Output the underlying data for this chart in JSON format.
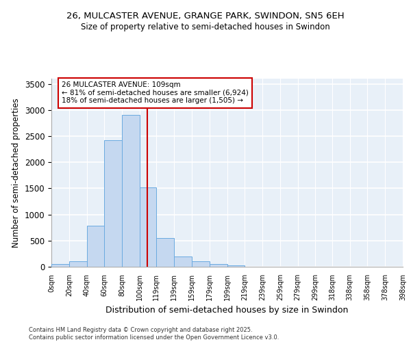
{
  "title_line1": "26, MULCASTER AVENUE, GRANGE PARK, SWINDON, SN5 6EH",
  "title_line2": "Size of property relative to semi-detached houses in Swindon",
  "xlabel": "Distribution of semi-detached houses by size in Swindon",
  "ylabel": "Number of semi-detached properties",
  "footer": "Contains HM Land Registry data © Crown copyright and database right 2025.\nContains public sector information licensed under the Open Government Licence v3.0.",
  "bar_edges": [
    0,
    20,
    40,
    60,
    80,
    100,
    119,
    139,
    159,
    179,
    199,
    219,
    239,
    259,
    279,
    299,
    318,
    338,
    358,
    378,
    398
  ],
  "bar_heights": [
    55,
    100,
    790,
    2420,
    2900,
    1520,
    550,
    200,
    100,
    50,
    30,
    5,
    3,
    2,
    1,
    1,
    0,
    0,
    0,
    0
  ],
  "bar_color": "#c5d8f0",
  "bar_edgecolor": "#6aaae0",
  "bg_color": "#e8f0f8",
  "grid_color": "#ffffff",
  "property_size": 109,
  "annotation_title": "26 MULCASTER AVENUE: 109sqm",
  "annotation_line2": "← 81% of semi-detached houses are smaller (6,924)",
  "annotation_line3": "18% of semi-detached houses are larger (1,505) →",
  "vline_color": "#cc0000",
  "annotation_box_color": "#cc0000",
  "ylim": [
    0,
    3600
  ],
  "yticks": [
    0,
    500,
    1000,
    1500,
    2000,
    2500,
    3000,
    3500
  ]
}
